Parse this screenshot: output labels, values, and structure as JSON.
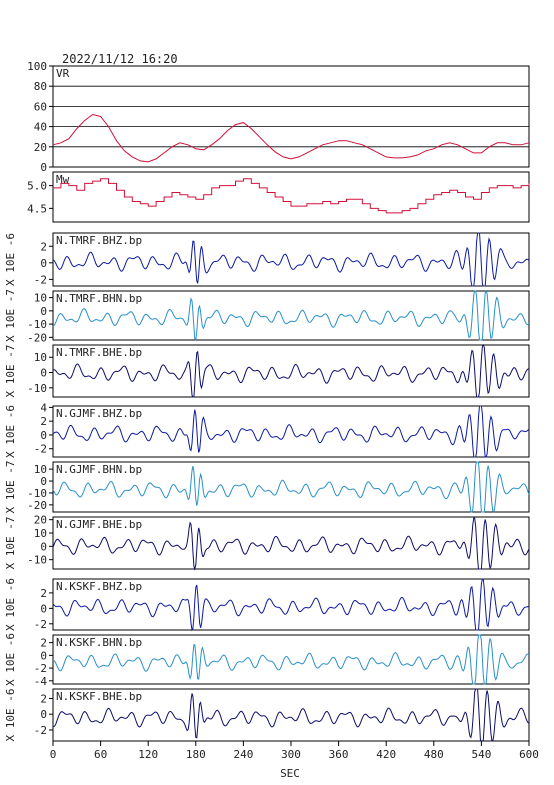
{
  "header": {
    "timestamp": "2022/11/12  16:20"
  },
  "chart_data": {
    "type": "line",
    "xlabel": "SEC",
    "xlim": [
      0,
      600
    ],
    "xticks": [
      0,
      60,
      120,
      180,
      240,
      300,
      360,
      420,
      480,
      540,
      600
    ],
    "panels": [
      {
        "label": "VR",
        "ylim": [
          0,
          100
        ],
        "yticks": [
          "0",
          "20",
          "40",
          "60",
          "80",
          "100"
        ],
        "ylabel": "",
        "grid": true,
        "color": "#d0103a",
        "series": {
          "x": [
            0,
            10,
            20,
            30,
            40,
            50,
            60,
            70,
            80,
            90,
            100,
            110,
            120,
            130,
            140,
            150,
            160,
            170,
            180,
            190,
            200,
            210,
            220,
            230,
            240,
            250,
            260,
            270,
            280,
            290,
            300,
            310,
            320,
            330,
            340,
            350,
            360,
            370,
            380,
            390,
            400,
            410,
            420,
            430,
            440,
            450,
            460,
            470,
            480,
            490,
            500,
            510,
            520,
            530,
            540,
            550,
            560,
            570,
            580,
            590,
            600
          ],
          "y": [
            22,
            24,
            28,
            38,
            46,
            52,
            50,
            40,
            26,
            16,
            10,
            6,
            5,
            8,
            14,
            20,
            24,
            22,
            18,
            17,
            22,
            28,
            36,
            42,
            44,
            38,
            30,
            22,
            15,
            10,
            8,
            10,
            14,
            18,
            22,
            24,
            26,
            26,
            24,
            22,
            18,
            14,
            10,
            9,
            9,
            10,
            12,
            16,
            18,
            22,
            24,
            22,
            18,
            14,
            14,
            20,
            24,
            24,
            22,
            22,
            24
          ]
        }
      },
      {
        "label": "Mw",
        "ylim": [
          4.2,
          5.3
        ],
        "yticks": [
          "4.5",
          "5.0"
        ],
        "ylabel": "",
        "grid": false,
        "color": "#d0103a",
        "step": true,
        "series": {
          "x": [
            0,
            10,
            20,
            30,
            40,
            50,
            60,
            70,
            80,
            90,
            100,
            110,
            120,
            130,
            140,
            150,
            160,
            170,
            180,
            190,
            200,
            210,
            220,
            230,
            240,
            250,
            260,
            270,
            280,
            290,
            300,
            310,
            320,
            330,
            340,
            350,
            360,
            370,
            380,
            390,
            400,
            410,
            420,
            430,
            440,
            450,
            460,
            470,
            480,
            490,
            500,
            510,
            520,
            530,
            540,
            550,
            560,
            570,
            580,
            590,
            600
          ],
          "y": [
            4.95,
            5.05,
            5.0,
            4.9,
            5.05,
            5.1,
            5.15,
            5.05,
            4.9,
            4.75,
            4.65,
            4.6,
            4.55,
            4.65,
            4.75,
            4.85,
            4.8,
            4.75,
            4.7,
            4.8,
            4.95,
            5.0,
            5.0,
            5.1,
            5.15,
            5.05,
            4.95,
            4.85,
            4.75,
            4.65,
            4.55,
            4.55,
            4.6,
            4.6,
            4.65,
            4.6,
            4.65,
            4.7,
            4.7,
            4.6,
            4.5,
            4.45,
            4.4,
            4.4,
            4.45,
            4.5,
            4.6,
            4.7,
            4.8,
            4.85,
            4.9,
            4.85,
            4.75,
            4.7,
            4.85,
            4.95,
            5.0,
            5.0,
            4.95,
            5.0,
            5.05
          ]
        }
      },
      {
        "label": "N.TMRF.BHZ.bp",
        "ylabel": "X 10E -6",
        "ylim": [
          -2.8,
          3.6
        ],
        "yticks": [
          "-2",
          "0",
          "2"
        ],
        "color": "#0d1aa0"
      },
      {
        "label": "N.TMRF.BHN.bp",
        "ylabel": "X 10E -7",
        "ylim": [
          -22,
          15
        ],
        "yticks": [
          "-20",
          "-10",
          "0",
          "10"
        ],
        "color": "#2a90c8"
      },
      {
        "label": "N.TMRF.BHE.bp",
        "ylabel": "X 10E -7",
        "ylim": [
          -16,
          18
        ],
        "yticks": [
          "-10",
          "0",
          "10"
        ],
        "color": "#0d0d6a"
      },
      {
        "label": "N.GJMF.BHZ.bp",
        "ylabel": "X 10E -6",
        "ylim": [
          -3.2,
          4.2
        ],
        "yticks": [
          "-2",
          "0",
          "2",
          "4"
        ],
        "color": "#0d1aa0"
      },
      {
        "label": "N.GJMF.BHN.bp",
        "ylabel": "X 10E -7",
        "ylim": [
          -26,
          16
        ],
        "yticks": [
          "-20",
          "-10",
          "0",
          "10"
        ],
        "color": "#2a90c8"
      },
      {
        "label": "N.GJMF.BHE.bp",
        "ylabel": "X 10E -7",
        "ylim": [
          -17,
          22
        ],
        "yticks": [
          "-10",
          "0",
          "10",
          "20"
        ],
        "color": "#0d0d6a"
      },
      {
        "label": "N.KSKF.BHZ.bp",
        "ylabel": "X 10E -6",
        "ylim": [
          -2.8,
          3.8
        ],
        "yticks": [
          "-2",
          "0",
          "2"
        ],
        "color": "#0d1aa0"
      },
      {
        "label": "N.KSKF.BHN.bp",
        "ylabel": "X 10E -6",
        "ylim": [
          -4.5,
          3.2
        ],
        "yticks": [
          "-4",
          "-2",
          "0",
          "2"
        ],
        "color": "#2a90c8"
      },
      {
        "label": "N.KSKF.BHE.bp",
        "ylabel": "X 10E -6",
        "ylim": [
          -3.4,
          3.2
        ],
        "yticks": [
          "-2",
          "0",
          "2"
        ],
        "color": "#0d0d6a"
      }
    ]
  }
}
